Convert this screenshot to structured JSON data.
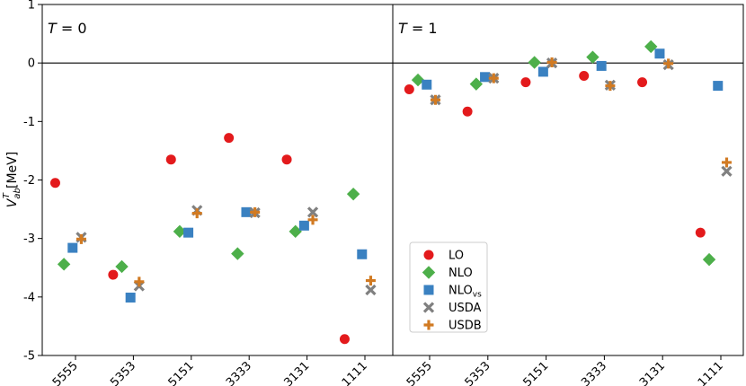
{
  "chart_data": {
    "type": "scatter",
    "ylabel_main": "V",
    "ylabel_sup": "T",
    "ylabel_sub": "ab",
    "ylabel_unit": "[MeV]",
    "ylim": [
      -5,
      1
    ],
    "yticks": [
      1,
      0,
      -1,
      -2,
      -3,
      -4,
      -5
    ],
    "ytick_labels": [
      "1",
      "0",
      "-1",
      "-2",
      "-3",
      "-4",
      "-5"
    ],
    "categories": [
      "5555",
      "5353",
      "5151",
      "3333",
      "3131",
      "1111"
    ],
    "reference_line": 0,
    "legend": [
      {
        "key": "LO",
        "label": "LO",
        "sub": ""
      },
      {
        "key": "NLO",
        "label": "NLO",
        "sub": ""
      },
      {
        "key": "NLOvs",
        "label": "NLO",
        "sub": "vs"
      },
      {
        "key": "USDA",
        "label": "USDA",
        "sub": ""
      },
      {
        "key": "USDB",
        "label": "USDB",
        "sub": ""
      }
    ],
    "series_style": {
      "LO": {
        "marker": "circle",
        "color": "#e31a1c",
        "offset": -0.35
      },
      "NLO": {
        "marker": "diamond",
        "color": "#4daf4a",
        "offset": -0.2
      },
      "NLOvs": {
        "marker": "square",
        "color": "#3a81c1",
        "offset": -0.05
      },
      "USDA": {
        "marker": "x",
        "color": "#808080",
        "offset": 0.1
      },
      "USDB": {
        "marker": "plus",
        "color": "#d17a22",
        "offset": 0.1
      }
    },
    "panels": [
      {
        "label": "T = 0",
        "label_var": "T",
        "label_rest": " = 0",
        "series": {
          "LO": [
            -2.05,
            -3.62,
            -1.65,
            -1.28,
            -1.65,
            -4.72
          ],
          "NLO": [
            -3.44,
            -3.48,
            -2.88,
            -3.26,
            -2.88,
            -2.24
          ],
          "NLOvs": [
            -3.16,
            -4.01,
            -2.9,
            -2.55,
            -2.78,
            -3.27
          ],
          "USDA": [
            -2.98,
            -3.81,
            -2.52,
            -2.56,
            -2.55,
            -3.88
          ],
          "USDB": [
            -3.01,
            -3.74,
            -2.57,
            -2.55,
            -2.68,
            -3.72
          ]
        }
      },
      {
        "label": "T = 1",
        "label_var": "T",
        "label_rest": " = 1",
        "series": {
          "LO": [
            -0.45,
            -0.83,
            -0.33,
            -0.22,
            -0.33,
            -2.9
          ],
          "NLO": [
            -0.29,
            -0.36,
            0.01,
            0.1,
            0.28,
            -3.36
          ],
          "NLOvs": [
            -0.37,
            -0.24,
            -0.15,
            -0.05,
            0.16,
            -0.39
          ],
          "USDA": [
            -0.63,
            -0.26,
            0.0,
            -0.38,
            -0.03,
            -1.85
          ],
          "USDB": [
            -0.63,
            -0.26,
            0.01,
            -0.39,
            -0.01,
            -1.7
          ]
        }
      }
    ]
  }
}
